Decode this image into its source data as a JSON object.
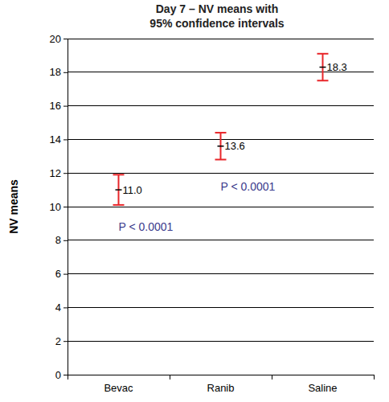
{
  "chart_data": {
    "type": "errorbar",
    "title": [
      "Day 7 – NV means with",
      "95% confidence intervals"
    ],
    "y_label": "NV means",
    "categories": [
      "Bevac",
      "Ranib",
      "Saline"
    ],
    "values": [
      11.0,
      13.6,
      18.3
    ],
    "value_labels": [
      "11.0",
      "13.6",
      "18.3"
    ],
    "errors": [
      0.9,
      0.8,
      0.8
    ],
    "color": "#e8262a",
    "ylim": [
      0,
      20
    ],
    "yticks": [
      0,
      2,
      4,
      6,
      8,
      10,
      12,
      14,
      16,
      18,
      20
    ],
    "grid": true,
    "data_labels": true,
    "annotations": [
      {
        "text": "P < 0.0001",
        "category": "Bevac",
        "y": 8.8
      },
      {
        "text": "P < 0.0001",
        "category": "Ranib",
        "y": 11.2
      }
    ]
  }
}
